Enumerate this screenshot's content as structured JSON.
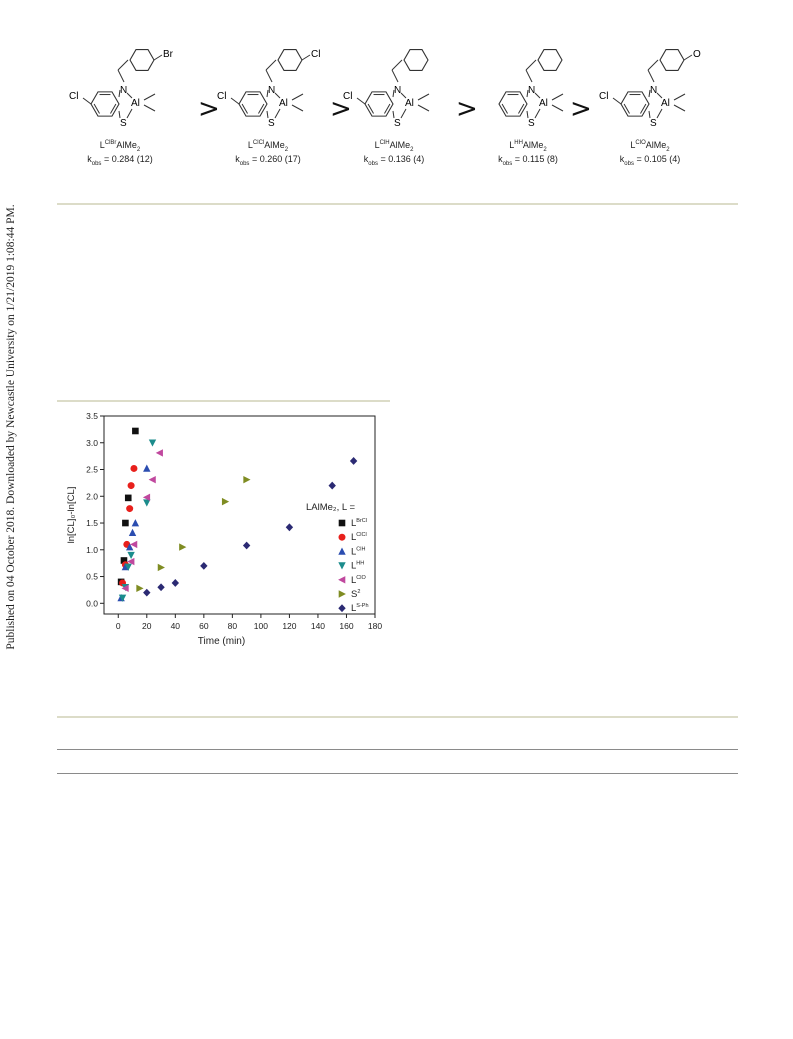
{
  "side_note": "Published on 04 October 2018. Downloaded by Newcastle University on 1/21/2019 1:08:44 PM.",
  "scheme": {
    "separator": ">",
    "compounds": [
      {
        "prefix": "L",
        "sup": "ClBr",
        "suffix": "AlMe",
        "sub": "2",
        "kobs_label": "k",
        "kobs_sub": "obs",
        "kobs_value": " = 0.284 (12)",
        "left_sub": "Cl",
        "para_sub": "Br"
      },
      {
        "prefix": "L",
        "sup": "ClCl",
        "suffix": "AlMe",
        "sub": "2",
        "kobs_label": "k",
        "kobs_sub": "obs",
        "kobs_value": " = 0.260 (17)",
        "left_sub": "Cl",
        "para_sub": "Cl"
      },
      {
        "prefix": "L",
        "sup": "ClH",
        "suffix": "AlMe",
        "sub": "2",
        "kobs_label": "k",
        "kobs_sub": "obs",
        "kobs_value": " = 0.136 (4)",
        "left_sub": "Cl",
        "para_sub": ""
      },
      {
        "prefix": "L",
        "sup": "HH",
        "suffix": "AlMe",
        "sub": "2",
        "kobs_label": "k",
        "kobs_sub": "obs",
        "kobs_value": " = 0.115 (8)",
        "left_sub": "",
        "para_sub": ""
      },
      {
        "prefix": "L",
        "sup": "ClO",
        "suffix": "AlMe",
        "sub": "2",
        "kobs_label": "k",
        "kobs_sub": "obs",
        "kobs_value": " = 0.105 (4)",
        "left_sub": "Cl",
        "para_sub": "O"
      }
    ],
    "atom_labels": {
      "n": "N",
      "al": "Al",
      "s": "S"
    }
  },
  "chart_data": {
    "type": "scatter",
    "xlabel": "Time (min)",
    "ylabel": "ln[CL]₀-ln[CL]",
    "xlim": [
      -10,
      180
    ],
    "ylim": [
      -0.2,
      3.5
    ],
    "xticks": [
      0,
      20,
      40,
      60,
      80,
      100,
      120,
      140,
      160,
      180
    ],
    "yticks": [
      0.0,
      0.5,
      1.0,
      1.5,
      2.0,
      2.5,
      3.0,
      3.5
    ],
    "legend_title": "LAlMe₂, L =",
    "legend_placement": "right",
    "series": [
      {
        "name": "L^BrCl",
        "label_main": "L",
        "label_sup": "BrCl",
        "marker": "square",
        "color": "#111111",
        "x": [
          2,
          4,
          5,
          7,
          12
        ],
        "y": [
          0.4,
          0.8,
          1.5,
          1.97,
          3.22
        ]
      },
      {
        "name": "L^ClCl",
        "label_main": "L",
        "label_sup": "ClCl",
        "marker": "circle",
        "color": "#e8201c",
        "x": [
          3,
          5,
          6,
          8,
          9,
          11
        ],
        "y": [
          0.38,
          0.72,
          1.1,
          1.77,
          2.2,
          2.52
        ]
      },
      {
        "name": "L^ClH",
        "label_main": "L",
        "label_sup": "ClH",
        "marker": "triangle-up",
        "color": "#2b4db0",
        "x": [
          2,
          5,
          8,
          10,
          12,
          20
        ],
        "y": [
          0.1,
          0.68,
          1.05,
          1.32,
          1.5,
          2.52
        ]
      },
      {
        "name": "L^HH",
        "label_main": "L",
        "label_sup": "HH",
        "marker": "triangle-down",
        "color": "#1c8c8c",
        "x": [
          3,
          5,
          7,
          9,
          20,
          24
        ],
        "y": [
          0.1,
          0.3,
          0.68,
          0.9,
          1.88,
          3.0
        ]
      },
      {
        "name": "L^ClO",
        "label_main": "L",
        "label_sup": "ClO",
        "marker": "triangle-left",
        "color": "#c0489e",
        "x": [
          5,
          9,
          11,
          20,
          24,
          29
        ],
        "y": [
          0.28,
          0.78,
          1.1,
          1.98,
          2.31,
          2.81
        ]
      },
      {
        "name": "S^2",
        "label_main": "S",
        "label_sup": "2",
        "marker": "triangle-right",
        "color": "#7f8c22",
        "x": [
          15,
          30,
          45,
          75,
          90
        ],
        "y": [
          0.28,
          0.67,
          1.05,
          1.9,
          2.31
        ]
      },
      {
        "name": "L^S-Ph",
        "label_main": "L",
        "label_sup": "S-Ph",
        "marker": "diamond",
        "color": "#2b2a73",
        "x": [
          20,
          30,
          40,
          60,
          90,
          120,
          150,
          165
        ],
        "y": [
          0.2,
          0.3,
          0.38,
          0.7,
          1.08,
          1.42,
          2.2,
          2.66
        ]
      }
    ]
  }
}
